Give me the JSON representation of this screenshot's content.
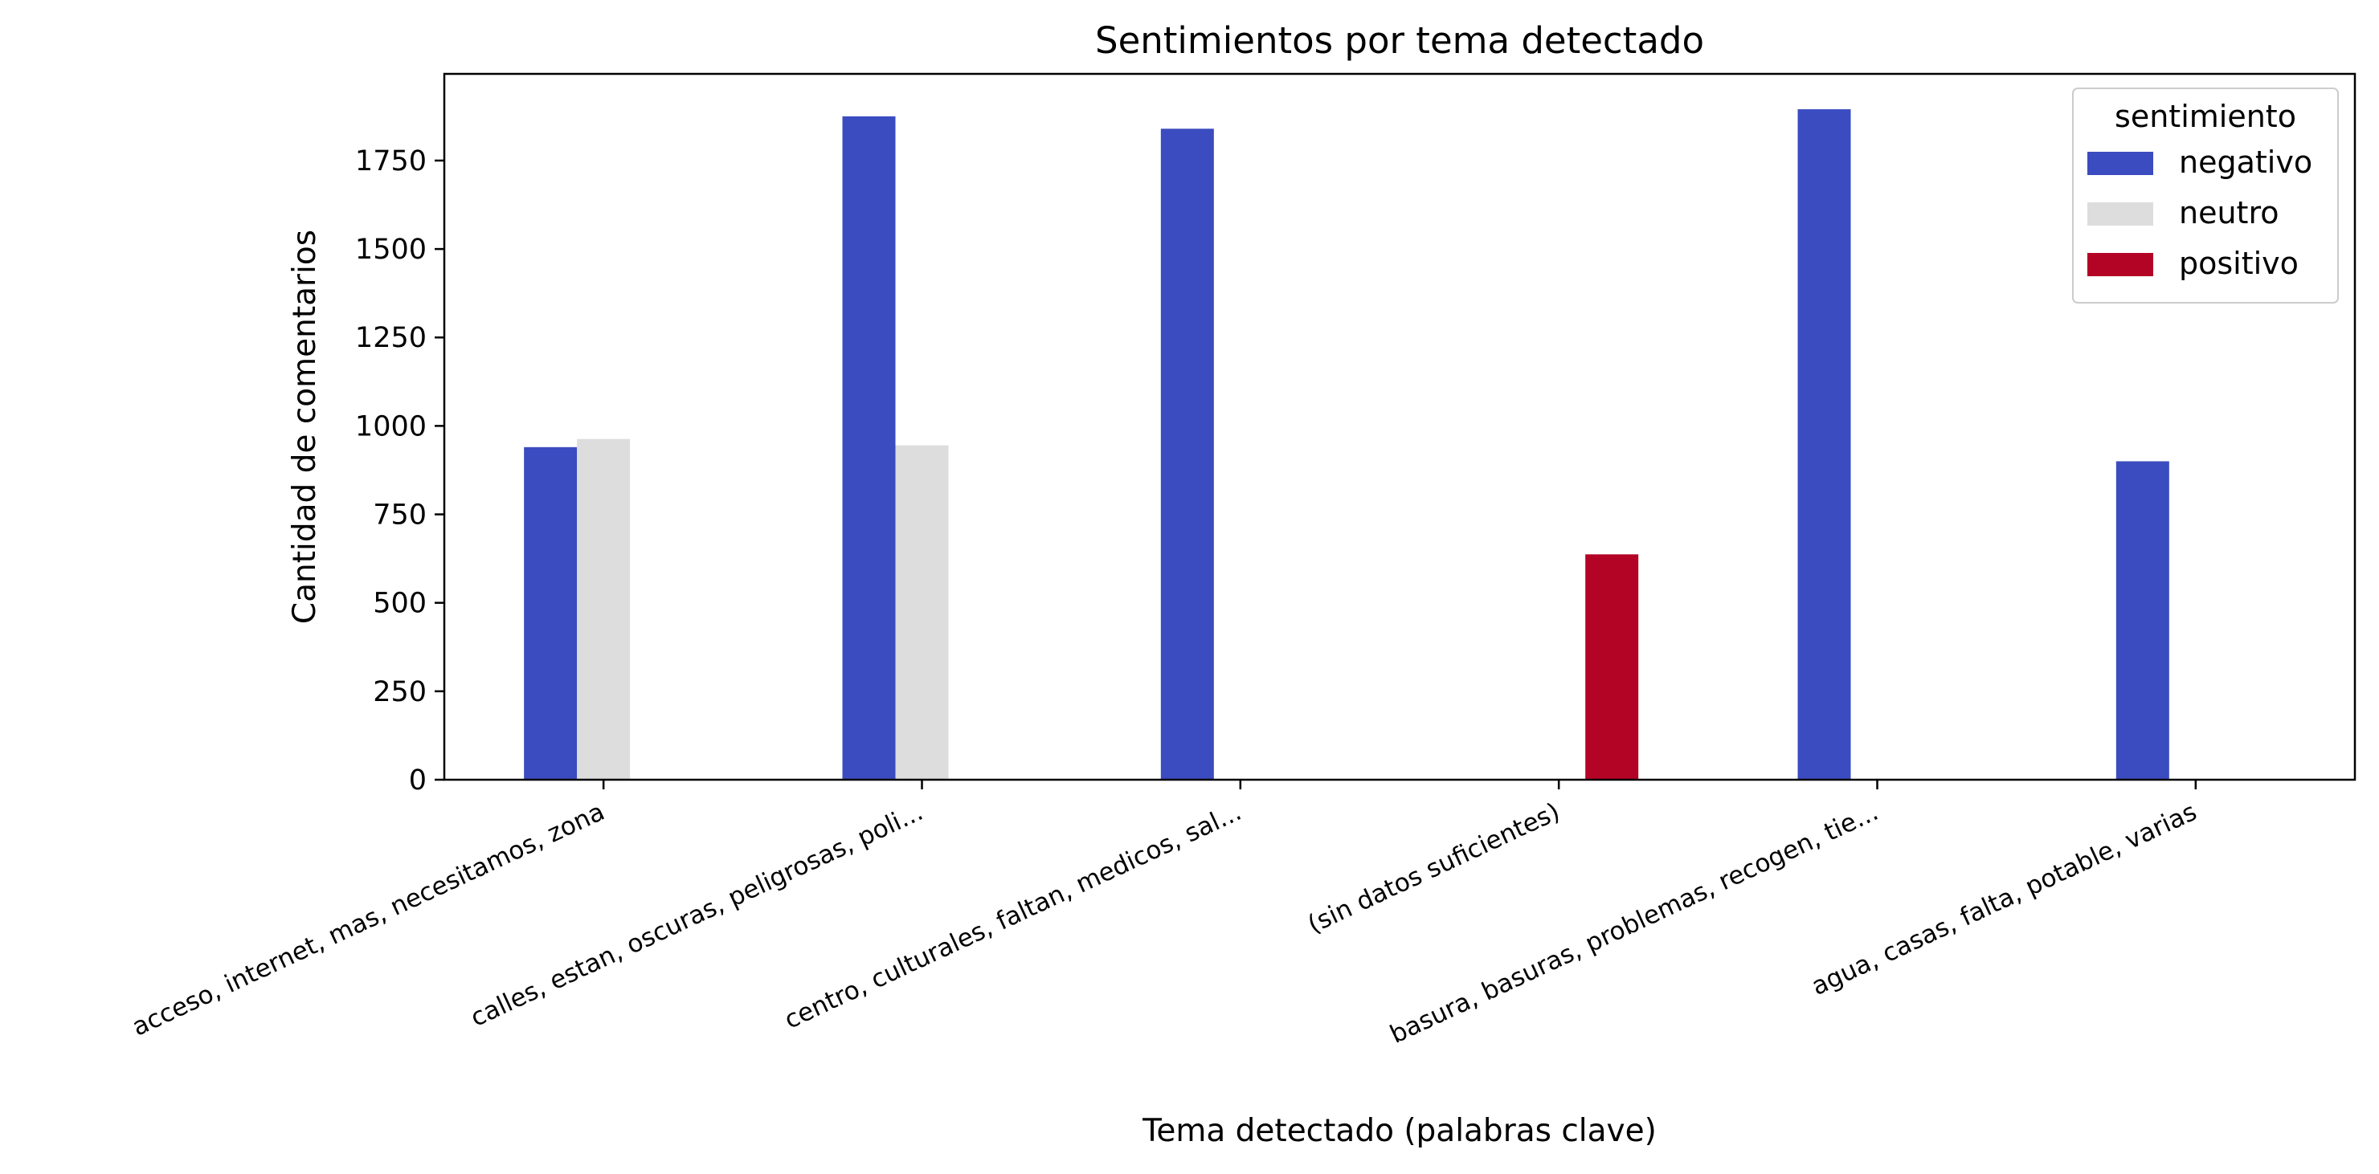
{
  "chart_data": {
    "type": "bar",
    "title": "Sentimientos por tema detectado",
    "xlabel": "Tema detectado (palabras clave)",
    "ylabel": "Cantidad de comentarios",
    "categories": [
      "acceso, internet, mas, necesitamos, zona",
      "calles, estan, oscuras, peligrosas, poli...",
      "centro, culturales, faltan, medicos, sal...",
      "(sin datos suficientes)",
      "basura, basuras, problemas, recogen, tie...",
      "agua, casas, falta, potable, varias"
    ],
    "series": [
      {
        "name": "negativo",
        "color": "#3b4cc0",
        "values": [
          940,
          1875,
          1840,
          0,
          1895,
          900
        ]
      },
      {
        "name": "neutro",
        "color": "#dddddd",
        "values": [
          963,
          945,
          0,
          0,
          0,
          0
        ]
      },
      {
        "name": "positivo",
        "color": "#b40426",
        "values": [
          0,
          0,
          0,
          637,
          0,
          0
        ]
      }
    ],
    "ylim": [
      0,
      1995
    ],
    "yticks": [
      0,
      250,
      500,
      750,
      1000,
      1250,
      1500,
      1750
    ],
    "legend": {
      "title": "sentimiento",
      "placement": "upper right"
    },
    "grid": false
  }
}
